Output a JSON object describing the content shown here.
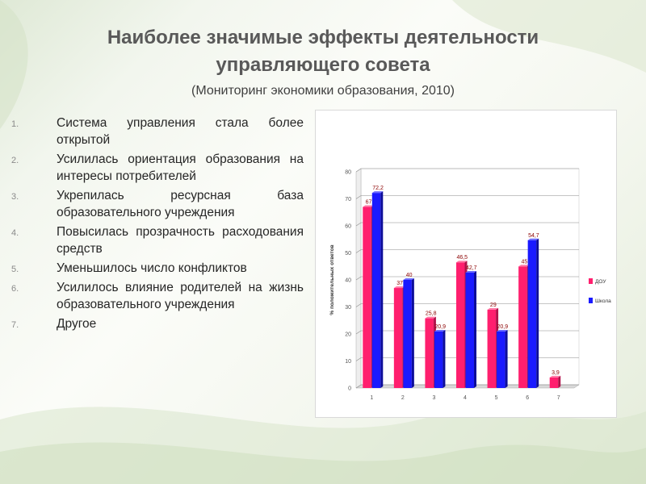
{
  "slide": {
    "title_line1": "Наиболее значимые эффекты деятельности",
    "title_line2": "управляющего совета",
    "subtitle": "(Мониторинг экономики образования, 2010)"
  },
  "list": [
    {
      "num": "1.",
      "text": "Система управления стала более открытой"
    },
    {
      "num": "2.",
      "text": "Усилилась ориентация образования на интересы потребителей"
    },
    {
      "num": "3.",
      "text": "Укрепилась ресурсная база образовательного учреждения"
    },
    {
      "num": "4.",
      "text": "Повысилась прозрачность расходования средств"
    },
    {
      "num": "5.",
      "text": "Уменьшилось число конфликтов"
    },
    {
      "num": "6.",
      "text": "Усилилось влияние родителей на жизнь образовательного учреждения"
    },
    {
      "num": "7.",
      "text": "Другое"
    }
  ],
  "colors": {
    "series1": "#ff1f6e",
    "series2": "#1a1aff",
    "accent_text": "#595959"
  },
  "chart_data": {
    "type": "bar",
    "categories": [
      "1",
      "2",
      "3",
      "4",
      "5",
      "6",
      "7"
    ],
    "series": [
      {
        "name": "ДОУ",
        "values": [
          67,
          37,
          25.8,
          46.5,
          29,
          45,
          3.9
        ]
      },
      {
        "name": "Школа",
        "values": [
          72.2,
          40,
          20.9,
          42.7,
          20.9,
          54.7,
          null
        ]
      }
    ],
    "data_labels": {
      "ДОУ": [
        "67",
        "37",
        "25,8",
        "46,5",
        "29",
        "45",
        "3,9"
      ],
      "Школа": [
        "72,2",
        "40",
        "20,9",
        "42,7",
        "20,9",
        "54,7",
        ""
      ]
    },
    "ylabel": "% положительных ответов",
    "yticks": [
      0,
      10,
      20,
      30,
      40,
      50,
      60,
      70,
      80
    ],
    "ylim": [
      0,
      80
    ],
    "grid": true,
    "legend_position": "right",
    "bar_style": "3d"
  }
}
